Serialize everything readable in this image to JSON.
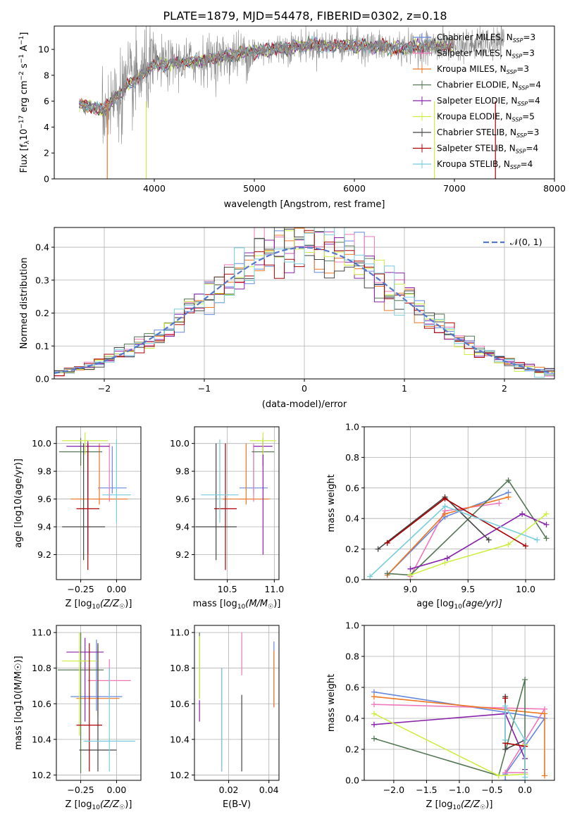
{
  "title": "PLATE=1879, MJD=54478, FIBERID=0302, z=0.18",
  "colors": {
    "Chabrier MILES": "#6688dd",
    "Salpeter MILES": "#ee77bb",
    "Kroupa MILES": "#ee7722",
    "Chabrier ELODIE": "#557755",
    "Salpeter ELODIE": "#8822aa",
    "Kroupa ELODIE": "#ccee44",
    "Chabrier STELIB": "#444444",
    "Salpeter STELIB": "#aa0000",
    "Kroupa STELIB": "#77ccdd",
    "spectrum": "#888888",
    "gaussian": "#5577cc"
  },
  "chart_data": [
    {
      "id": "spectrum",
      "type": "line",
      "title": "PLATE=1879, MJD=54478, FIBERID=0302, z=0.18",
      "xlabel": "wavelength [Angstrom, rest frame]",
      "ylabel": "Flux [f_λ 10^-17 erg cm^-2 s^-1 A^-1]",
      "xlim": [
        3000,
        8000
      ],
      "ylim": [
        0,
        11.8
      ],
      "xticks": [
        4000,
        5000,
        6000,
        7000,
        8000
      ],
      "yticks": [
        0,
        2,
        4,
        6,
        8,
        10
      ],
      "legend_position": "top-right",
      "legend": [
        {
          "base": "Chabrier MILES, N",
          "sub": "SSP",
          "tail": "=3"
        },
        {
          "base": "Salpeter MILES, N",
          "sub": "SSP",
          "tail": "=3"
        },
        {
          "base": "Kroupa MILES, N",
          "sub": "SSP",
          "tail": "=3"
        },
        {
          "base": "Chabrier ELODIE, N",
          "sub": "SSP",
          "tail": "=4"
        },
        {
          "base": "Salpeter ELODIE, N",
          "sub": "SSP",
          "tail": "=4"
        },
        {
          "base": "Kroupa ELODIE, N",
          "sub": "SSP",
          "tail": "=5"
        },
        {
          "base": "Chabrier STELIB, N",
          "sub": "SSP",
          "tail": "=3"
        },
        {
          "base": "Salpeter STELIB, N",
          "sub": "SSP",
          "tail": "=4"
        },
        {
          "base": "Kroupa STELIB, N",
          "sub": "SSP",
          "tail": "=4"
        }
      ],
      "trend": {
        "x": [
          3250,
          3500,
          3700,
          3900,
          4000,
          4300,
          4600,
          5000,
          5500,
          6000,
          6500,
          7000,
          7500
        ],
        "y": [
          5.8,
          5.3,
          7.0,
          8.2,
          8.8,
          9.0,
          9.3,
          9.8,
          10.3,
          10.3,
          10.1,
          10.3,
          10.5
        ]
      },
      "model_end": [
        7000,
        10.2
      ],
      "noise_x_start": 3480,
      "spectrum_end": 7500
    },
    {
      "id": "residuals",
      "type": "histogram",
      "xlabel": "(data-model)/error",
      "ylabel": "Normed distribution",
      "xlim": [
        -2.5,
        2.5
      ],
      "ylim": [
        0,
        0.46
      ],
      "xticks": [
        -2,
        -1,
        0,
        1,
        2
      ],
      "yticks": [
        0.0,
        0.1,
        0.2,
        0.3,
        0.4
      ],
      "bin_width": 0.1,
      "legend_position": "top-right",
      "legend_label": "𝒩(0, 1)"
    },
    {
      "id": "z-age",
      "type": "errorbar",
      "xlabel_main": "Z [log",
      "xlabel_sub": "10",
      "xlabel_tail": "(Z/Z",
      "ylabel": "age  [log10(age/yr)]",
      "xlim": [
        -0.42,
        0.17
      ],
      "ylim": [
        9.02,
        10.12
      ],
      "xticks": [
        -0.25,
        0.0
      ],
      "yticks": [
        9.2,
        9.4,
        9.6,
        9.8,
        10.0
      ],
      "points": [
        {
          "model": "Chabrier MILES",
          "x": -0.03,
          "xerr": 0.1,
          "y": 9.68,
          "yerr": [
            0.04,
            0.3
          ]
        },
        {
          "model": "Salpeter MILES",
          "x": -0.05,
          "xerr": 0.12,
          "y": 9.6,
          "yerr": [
            0.02,
            0.4
          ]
        },
        {
          "model": "Kroupa MILES",
          "x": -0.12,
          "xerr": 0.2,
          "y": 9.6,
          "yerr": [
            0.04,
            0.4
          ]
        },
        {
          "model": "Chabrier ELODIE",
          "x": -0.25,
          "xerr": 0.15,
          "y": 9.94,
          "yerr": [
            0.1,
            0.1
          ]
        },
        {
          "model": "Salpeter ELODIE",
          "x": -0.2,
          "xerr": 0.15,
          "y": 9.98,
          "yerr": [
            0.78,
            0.04
          ]
        },
        {
          "model": "Kroupa ELODIE",
          "x": -0.22,
          "xerr": 0.16,
          "y": 10.02,
          "yerr": [
            0.1,
            0.06
          ]
        },
        {
          "model": "Chabrier STELIB",
          "x": -0.23,
          "xerr": 0.15,
          "y": 9.4,
          "yerr": [
            0.24,
            0.6
          ]
        },
        {
          "model": "Salpeter STELIB",
          "x": -0.2,
          "xerr": 0.08,
          "y": 9.53,
          "yerr": [
            0.44,
            0.47
          ]
        },
        {
          "model": "Kroupa STELIB",
          "x": 0.0,
          "xerr": 0.1,
          "y": 9.63,
          "yerr": [
            0.2,
            0.4
          ]
        }
      ]
    },
    {
      "id": "mass-age",
      "type": "errorbar",
      "xlabel_main": "mass [log",
      "xlabel_sub": "10",
      "xlabel_tail": "(M/M",
      "ylabel": "",
      "xlim": [
        10.15,
        11.05
      ],
      "ylim": [
        9.02,
        10.12
      ],
      "xticks": [
        10.5,
        11.0
      ],
      "yticks": [
        9.2,
        9.4,
        9.6,
        9.8,
        10.0
      ],
      "points": [
        {
          "model": "Chabrier MILES",
          "x": 10.78,
          "xerr": 0.15,
          "y": 9.68,
          "yerr": [
            0.04,
            0.3
          ]
        },
        {
          "model": "Salpeter MILES",
          "x": 10.78,
          "xerr": 0.15,
          "y": 9.6,
          "yerr": [
            0.02,
            0.4
          ]
        },
        {
          "model": "Kroupa MILES",
          "x": 10.7,
          "xerr": 0.25,
          "y": 9.6,
          "yerr": [
            0.04,
            0.4
          ]
        },
        {
          "model": "Chabrier ELODIE",
          "x": 10.88,
          "xerr": 0.12,
          "y": 9.94,
          "yerr": [
            0.1,
            0.1
          ]
        },
        {
          "model": "Salpeter ELODIE",
          "x": 10.88,
          "xerr": 0.1,
          "y": 9.98,
          "yerr": [
            0.78,
            0.04
          ]
        },
        {
          "model": "Kroupa ELODIE",
          "x": 10.88,
          "xerr": 0.14,
          "y": 10.02,
          "yerr": [
            0.1,
            0.06
          ]
        },
        {
          "model": "Chabrier STELIB",
          "x": 10.38,
          "xerr": 0.22,
          "y": 9.4,
          "yerr": [
            0.24,
            0.6
          ]
        },
        {
          "model": "Salpeter STELIB",
          "x": 10.48,
          "xerr": 0.12,
          "y": 9.53,
          "yerr": [
            0.44,
            0.47
          ]
        },
        {
          "model": "Kroupa STELIB",
          "x": 10.42,
          "xerr": 0.2,
          "y": 9.63,
          "yerr": [
            0.2,
            0.4
          ]
        }
      ]
    },
    {
      "id": "age-weight",
      "type": "line",
      "xlabel_main": "age  [log",
      "xlabel_sub": "10",
      "xlabel_tail": "(age/yr)]",
      "ylabel": "mass weight",
      "xlim": [
        8.6,
        10.25
      ],
      "ylim": [
        0,
        1
      ],
      "xticks": [
        9.0,
        9.5,
        10.0
      ],
      "yticks": [
        0.0,
        0.2,
        0.4,
        0.6,
        0.8,
        1.0
      ],
      "series": [
        {
          "model": "Chabrier MILES",
          "x": [
            8.8,
            9.3,
            9.85
          ],
          "y": [
            0.03,
            0.41,
            0.57
          ]
        },
        {
          "model": "Salpeter MILES",
          "x": [
            9.0,
            9.3,
            9.77
          ],
          "y": [
            0.02,
            0.45,
            0.5
          ]
        },
        {
          "model": "Kroupa MILES",
          "x": [
            8.8,
            9.3,
            9.85
          ],
          "y": [
            0.03,
            0.43,
            0.54
          ]
        },
        {
          "model": "Chabrier ELODIE",
          "x": [
            8.8,
            9.0,
            9.85,
            10.18
          ],
          "y": [
            0.04,
            0.03,
            0.65,
            0.27
          ]
        },
        {
          "model": "Salpeter ELODIE",
          "x": [
            9.0,
            9.32,
            9.97,
            10.18
          ],
          "y": [
            0.07,
            0.14,
            0.43,
            0.36
          ]
        },
        {
          "model": "Kroupa ELODIE",
          "x": [
            9.0,
            9.3,
            9.85,
            10.18
          ],
          "y": [
            0.03,
            0.11,
            0.23,
            0.43
          ]
        },
        {
          "model": "Chabrier STELIB",
          "x": [
            8.72,
            9.3,
            9.68
          ],
          "y": [
            0.2,
            0.54,
            0.26
          ]
        },
        {
          "model": "Salpeter STELIB",
          "x": [
            8.8,
            9.3,
            10.0
          ],
          "y": [
            0.24,
            0.53,
            0.22
          ]
        },
        {
          "model": "Kroupa STELIB",
          "x": [
            8.65,
            9.3,
            10.1
          ],
          "y": [
            0.02,
            0.48,
            0.26
          ]
        }
      ]
    },
    {
      "id": "z-mass",
      "type": "errorbar",
      "xlabel_main": "Z [log",
      "xlabel_sub": "10",
      "xlabel_tail": "(Z/Z",
      "ylabel": "mass [log10(M/M☉)]",
      "xlim": [
        -0.42,
        0.17
      ],
      "ylim": [
        10.17,
        11.04
      ],
      "xticks": [
        -0.25,
        0.0
      ],
      "yticks": [
        10.2,
        10.4,
        10.6,
        10.8,
        11.0
      ],
      "points": [
        {
          "model": "Chabrier MILES",
          "x": -0.14,
          "xerr": 0.18,
          "y": 10.64,
          "yerr": [
            0.08,
            0.32
          ]
        },
        {
          "model": "Salpeter MILES",
          "x": -0.05,
          "xerr": 0.15,
          "y": 10.73,
          "yerr": [
            0.08,
            0.12
          ]
        },
        {
          "model": "Kroupa MILES",
          "x": -0.13,
          "xerr": 0.15,
          "y": 10.63,
          "yerr": [
            0.1,
            0.3
          ]
        },
        {
          "model": "Chabrier ELODIE",
          "x": -0.25,
          "xerr": 0.16,
          "y": 10.79,
          "yerr": [
            0.58,
            0.21
          ]
        },
        {
          "model": "Salpeter ELODIE",
          "x": -0.22,
          "xerr": 0.13,
          "y": 10.89,
          "yerr": [
            0.39,
            0.08
          ]
        },
        {
          "model": "Kroupa ELODIE",
          "x": -0.26,
          "xerr": 0.12,
          "y": 10.84,
          "yerr": [
            0.42,
            0.16
          ]
        },
        {
          "model": "Chabrier STELIB",
          "x": -0.13,
          "xerr": 0.13,
          "y": 10.34,
          "yerr": [
            0.12,
            0.6
          ]
        },
        {
          "model": "Salpeter STELIB",
          "x": -0.19,
          "xerr": 0.09,
          "y": 10.48,
          "yerr": [
            0.26,
            0.46
          ]
        },
        {
          "model": "Kroupa STELIB",
          "x": -0.05,
          "xerr": 0.18,
          "y": 10.39,
          "yerr": [
            0.17,
            0.41
          ]
        }
      ]
    },
    {
      "id": "ebv-mass",
      "type": "errorbar",
      "xlabel": "E(B-V)",
      "ylabel": "",
      "xlim": [
        0.003,
        0.045
      ],
      "ylim": [
        10.17,
        11.04
      ],
      "xticks": [
        0.02,
        0.04
      ],
      "yticks": [
        10.2,
        10.4,
        10.6,
        10.8,
        11.0
      ],
      "points": [
        {
          "model": "Chabrier MILES",
          "x": 0.0425,
          "y": 10.88,
          "yerr": [
            0.3,
            0.07
          ]
        },
        {
          "model": "Salpeter MILES",
          "x": 0.0265,
          "y": 10.87,
          "yerr": [
            0.11,
            0.13
          ]
        },
        {
          "model": "Kroupa MILES",
          "x": 0.0425,
          "y": 10.87,
          "yerr": [
            0.29,
            0.03
          ]
        },
        {
          "model": "Chabrier ELODIE",
          "x": 0.0055,
          "y": 10.87,
          "yerr": [
            0.24,
            0.13
          ]
        },
        {
          "model": "Salpeter ELODIE",
          "x": 0.0055,
          "y": 10.6,
          "yerr": [
            0.1,
            0.02
          ]
        },
        {
          "model": "Kroupa ELODIE",
          "x": 0.0055,
          "y": 10.85,
          "yerr": [
            0.22,
            0.13
          ]
        },
        {
          "model": "Chabrier STELIB",
          "x": 0.0265,
          "y": 10.42,
          "yerr": [
            0.2,
            0.23
          ]
        },
        {
          "model": "Salpeter STELIB",
          "x": 0.0165,
          "y": 10.48,
          "yerr": [
            0.26,
            0.32
          ]
        },
        {
          "model": "Kroupa STELIB",
          "x": 0.0165,
          "y": 10.42,
          "yerr": [
            0.2,
            0.38
          ]
        }
      ]
    },
    {
      "id": "z-weight",
      "type": "line",
      "xlabel_main": "Z [log",
      "xlabel_sub": "10",
      "xlabel_tail": "(Z/Z",
      "ylabel": "mass weight",
      "xlim": [
        -2.45,
        0.45
      ],
      "ylim": [
        0,
        1
      ],
      "xticks": [
        -2.0,
        -1.5,
        -1.0,
        -0.5,
        0.0
      ],
      "yticks": [
        0.0,
        0.2,
        0.4,
        0.6,
        0.8,
        1.0
      ],
      "series": [
        {
          "model": "Chabrier MILES",
          "x": [
            -2.3,
            0.3,
            -0.3,
            -0.3,
            0.0
          ],
          "y": [
            0.57,
            0.4,
            0.04,
            0.0,
            0.0
          ]
        },
        {
          "model": "Salpeter MILES",
          "x": [
            -2.3,
            0.3,
            -0.3,
            0.0
          ],
          "y": [
            0.49,
            0.46,
            0.05,
            0.05
          ]
        },
        {
          "model": "Kroupa MILES",
          "x": [
            -2.3,
            0.3,
            0.3
          ],
          "y": [
            0.54,
            0.43,
            0.03
          ]
        },
        {
          "model": "Chabrier ELODIE",
          "x": [
            -2.3,
            -0.4,
            0.0,
            0.0
          ],
          "y": [
            0.27,
            0.03,
            0.65,
            0.04
          ]
        },
        {
          "model": "Salpeter ELODIE",
          "x": [
            -2.3,
            -0.3,
            0.0,
            0.0
          ],
          "y": [
            0.36,
            0.43,
            0.14,
            0.07
          ]
        },
        {
          "model": "Kroupa ELODIE",
          "x": [
            -2.3,
            -0.4,
            0.0,
            0.0
          ],
          "y": [
            0.43,
            0.03,
            0.04,
            0.23
          ]
        },
        {
          "model": "Chabrier STELIB",
          "x": [
            -0.3,
            -0.3,
            0.0
          ],
          "y": [
            0.54,
            0.2,
            0.26
          ]
        },
        {
          "model": "Salpeter STELIB",
          "x": [
            -0.3,
            -0.3,
            0.0,
            0.0
          ],
          "y": [
            0.53,
            0.24,
            0.22,
            0.22
          ]
        },
        {
          "model": "Kroupa STELIB",
          "x": [
            -0.3,
            -0.3,
            0.0,
            0.0
          ],
          "y": [
            0.26,
            0.48,
            0.26,
            0.02
          ]
        }
      ]
    }
  ]
}
